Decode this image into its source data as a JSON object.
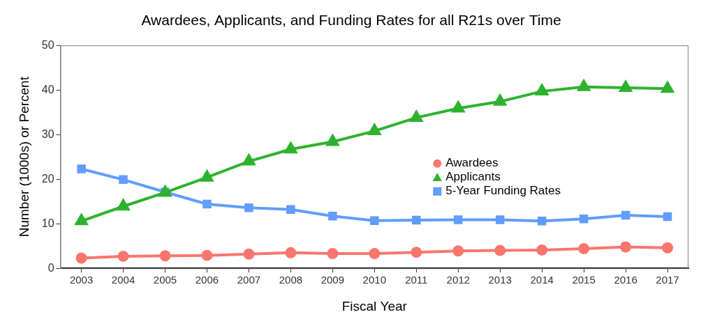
{
  "chart_data": {
    "type": "line",
    "title": "Awardees, Applicants, and Funding Rates for all R21s over Time",
    "x_label": "Fiscal Year",
    "y_label": "Number (1000s) or Percent",
    "categories": [
      "2003",
      "2004",
      "2005",
      "2006",
      "2007",
      "2008",
      "2009",
      "2010",
      "2011",
      "2012",
      "2013",
      "2014",
      "2015",
      "2016",
      "2017"
    ],
    "series": [
      {
        "name": "Awardees",
        "color": "#F8766D",
        "marker": "circle",
        "line_style": "solid",
        "values": [
          2.3,
          2.7,
          2.8,
          2.9,
          3.2,
          3.5,
          3.3,
          3.3,
          3.6,
          3.9,
          4.0,
          4.1,
          4.4,
          4.8,
          4.6
        ]
      },
      {
        "name": "Applicants",
        "color": "#2EB22E",
        "marker": "triangle",
        "line_style": "solid",
        "values": [
          10.6,
          13.9,
          17.0,
          20.4,
          24.0,
          26.7,
          28.4,
          30.8,
          33.8,
          35.9,
          37.4,
          39.7,
          40.7,
          40.5,
          40.3
        ]
      },
      {
        "name": "5-Year Funding Rates",
        "color": "#619CFF",
        "marker": "square",
        "line_style": "solid",
        "values": [
          22.3,
          19.9,
          17.1,
          14.4,
          13.6,
          13.2,
          11.7,
          10.7,
          10.8,
          10.9,
          10.9,
          10.6,
          11.1,
          11.9,
          11.6
        ]
      }
    ],
    "ylim": [
      0,
      50
    ],
    "yticks": [
      0,
      10,
      20,
      30,
      40,
      50
    ],
    "grid": false,
    "legend": "center"
  }
}
